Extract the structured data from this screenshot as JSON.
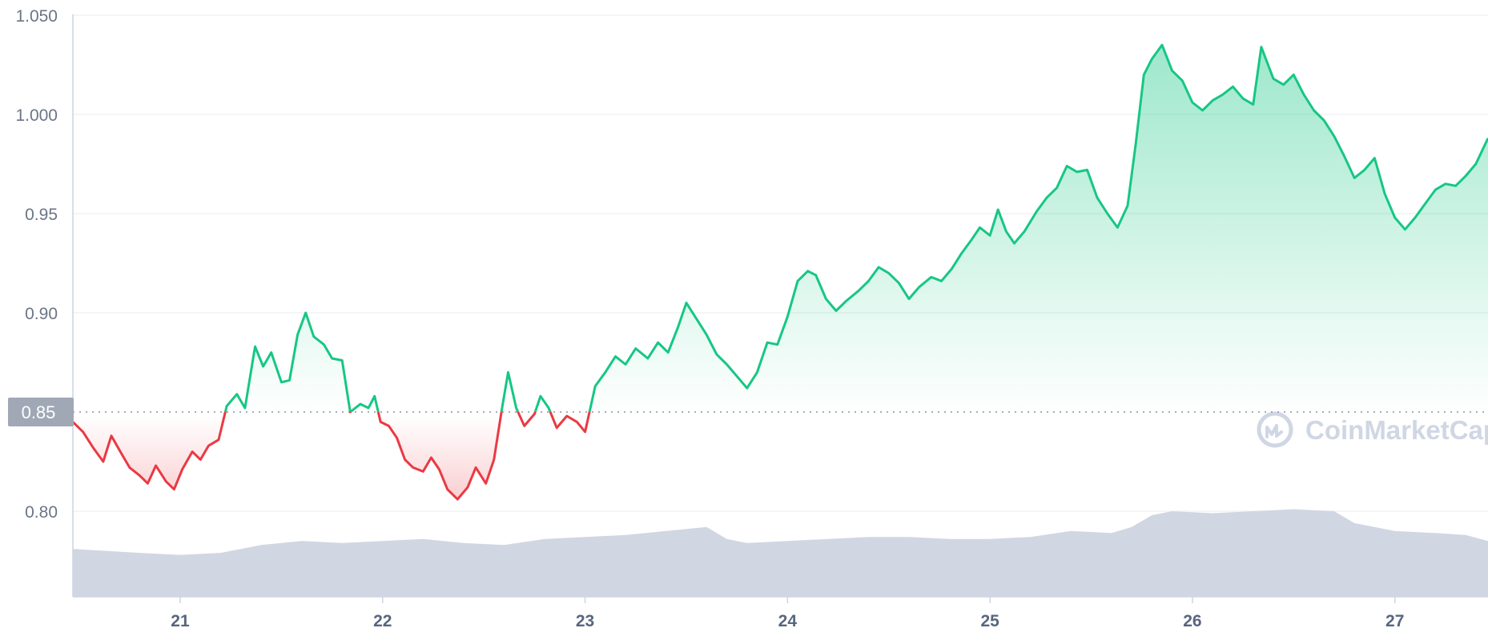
{
  "chart_data": {
    "type": "line",
    "title": "",
    "xlabel": "",
    "ylabel": "",
    "x_ticks": [
      "21",
      "22",
      "23",
      "24",
      "25",
      "26",
      "27"
    ],
    "y_ticks": [
      "1.050",
      "1.000",
      "0.95",
      "0.90",
      "0.80"
    ],
    "ylim": [
      0.755,
      1.052
    ],
    "xlim": [
      20.47,
      27.46
    ],
    "baseline": {
      "value": 0.85,
      "label": "0.85"
    },
    "grid": true,
    "legend": "none",
    "colors": {
      "up": "#16c784",
      "down": "#ea3943",
      "volume": "#d1d6e3",
      "baseline_tag": "#a0a8b6"
    },
    "series": [
      {
        "points": [
          [
            20.47,
            0.845
          ],
          [
            20.52,
            0.84
          ],
          [
            20.57,
            0.832
          ],
          [
            20.62,
            0.825
          ],
          [
            20.66,
            0.838
          ],
          [
            20.71,
            0.829
          ],
          [
            20.75,
            0.822
          ],
          [
            20.8,
            0.818
          ],
          [
            20.84,
            0.814
          ],
          [
            20.88,
            0.823
          ],
          [
            20.93,
            0.815
          ],
          [
            20.97,
            0.811
          ],
          [
            21.01,
            0.821
          ],
          [
            21.06,
            0.83
          ],
          [
            21.1,
            0.826
          ],
          [
            21.14,
            0.833
          ],
          [
            21.19,
            0.836
          ],
          [
            21.23,
            0.853
          ],
          [
            21.28,
            0.859
          ],
          [
            21.32,
            0.852
          ],
          [
            21.37,
            0.883
          ],
          [
            21.41,
            0.873
          ],
          [
            21.45,
            0.88
          ],
          [
            21.5,
            0.865
          ],
          [
            21.54,
            0.866
          ],
          [
            21.58,
            0.889
          ],
          [
            21.62,
            0.9
          ],
          [
            21.66,
            0.888
          ],
          [
            21.71,
            0.884
          ],
          [
            21.75,
            0.877
          ],
          [
            21.8,
            0.876
          ],
          [
            21.84,
            0.85
          ],
          [
            21.89,
            0.854
          ],
          [
            21.93,
            0.852
          ],
          [
            21.96,
            0.858
          ],
          [
            21.99,
            0.845
          ],
          [
            22.03,
            0.843
          ],
          [
            22.07,
            0.837
          ],
          [
            22.11,
            0.826
          ],
          [
            22.15,
            0.822
          ],
          [
            22.2,
            0.82
          ],
          [
            22.24,
            0.827
          ],
          [
            22.28,
            0.821
          ],
          [
            22.32,
            0.811
          ],
          [
            22.37,
            0.806
          ],
          [
            22.42,
            0.812
          ],
          [
            22.46,
            0.822
          ],
          [
            22.51,
            0.814
          ],
          [
            22.55,
            0.826
          ],
          [
            22.59,
            0.852
          ],
          [
            22.62,
            0.87
          ],
          [
            22.66,
            0.852
          ],
          [
            22.7,
            0.843
          ],
          [
            22.75,
            0.849
          ],
          [
            22.78,
            0.858
          ],
          [
            22.82,
            0.852
          ],
          [
            22.86,
            0.842
          ],
          [
            22.91,
            0.848
          ],
          [
            22.96,
            0.845
          ],
          [
            23.0,
            0.84
          ],
          [
            23.05,
            0.863
          ],
          [
            23.1,
            0.87
          ],
          [
            23.15,
            0.878
          ],
          [
            23.2,
            0.874
          ],
          [
            23.25,
            0.882
          ],
          [
            23.31,
            0.877
          ],
          [
            23.36,
            0.885
          ],
          [
            23.41,
            0.88
          ],
          [
            23.46,
            0.893
          ],
          [
            23.5,
            0.905
          ],
          [
            23.55,
            0.897
          ],
          [
            23.6,
            0.889
          ],
          [
            23.65,
            0.879
          ],
          [
            23.7,
            0.874
          ],
          [
            23.75,
            0.868
          ],
          [
            23.8,
            0.862
          ],
          [
            23.85,
            0.87
          ],
          [
            23.9,
            0.885
          ],
          [
            23.95,
            0.884
          ],
          [
            24.0,
            0.898
          ],
          [
            24.05,
            0.916
          ],
          [
            24.1,
            0.921
          ],
          [
            24.14,
            0.919
          ],
          [
            24.19,
            0.907
          ],
          [
            24.24,
            0.901
          ],
          [
            24.29,
            0.906
          ],
          [
            24.35,
            0.911
          ],
          [
            24.4,
            0.916
          ],
          [
            24.45,
            0.923
          ],
          [
            24.5,
            0.92
          ],
          [
            24.55,
            0.915
          ],
          [
            24.6,
            0.907
          ],
          [
            24.65,
            0.913
          ],
          [
            24.71,
            0.918
          ],
          [
            24.76,
            0.916
          ],
          [
            24.81,
            0.922
          ],
          [
            24.86,
            0.93
          ],
          [
            24.91,
            0.937
          ],
          [
            24.95,
            0.943
          ],
          [
            25.0,
            0.939
          ],
          [
            25.04,
            0.952
          ],
          [
            25.08,
            0.941
          ],
          [
            25.12,
            0.935
          ],
          [
            25.17,
            0.941
          ],
          [
            25.23,
            0.951
          ],
          [
            25.28,
            0.958
          ],
          [
            25.33,
            0.963
          ],
          [
            25.38,
            0.974
          ],
          [
            25.43,
            0.971
          ],
          [
            25.48,
            0.972
          ],
          [
            25.53,
            0.958
          ],
          [
            25.58,
            0.95
          ],
          [
            25.63,
            0.943
          ],
          [
            25.68,
            0.954
          ],
          [
            25.72,
            0.985
          ],
          [
            25.76,
            1.02
          ],
          [
            25.8,
            1.028
          ],
          [
            25.85,
            1.035
          ],
          [
            25.9,
            1.022
          ],
          [
            25.95,
            1.017
          ],
          [
            26.0,
            1.006
          ],
          [
            26.05,
            1.002
          ],
          [
            26.1,
            1.007
          ],
          [
            26.15,
            1.01
          ],
          [
            26.2,
            1.014
          ],
          [
            26.25,
            1.008
          ],
          [
            26.3,
            1.005
          ],
          [
            26.34,
            1.034
          ],
          [
            26.4,
            1.018
          ],
          [
            26.45,
            1.015
          ],
          [
            26.5,
            1.02
          ],
          [
            26.55,
            1.01
          ],
          [
            26.6,
            1.002
          ],
          [
            26.65,
            0.997
          ],
          [
            26.7,
            0.989
          ],
          [
            26.75,
            0.979
          ],
          [
            26.8,
            0.968
          ],
          [
            26.85,
            0.972
          ],
          [
            26.9,
            0.978
          ],
          [
            26.95,
            0.96
          ],
          [
            27.0,
            0.948
          ],
          [
            27.05,
            0.942
          ],
          [
            27.1,
            0.948
          ],
          [
            27.15,
            0.955
          ],
          [
            27.2,
            0.962
          ],
          [
            27.25,
            0.965
          ],
          [
            27.3,
            0.964
          ],
          [
            27.35,
            0.969
          ],
          [
            27.4,
            0.975
          ],
          [
            27.46,
            0.988
          ]
        ]
      },
      {
        "name": "volume",
        "points": [
          [
            20.47,
            0.781
          ],
          [
            20.8,
            0.779
          ],
          [
            21.0,
            0.778
          ],
          [
            21.2,
            0.779
          ],
          [
            21.4,
            0.783
          ],
          [
            21.6,
            0.785
          ],
          [
            21.8,
            0.784
          ],
          [
            22.0,
            0.785
          ],
          [
            22.2,
            0.786
          ],
          [
            22.4,
            0.784
          ],
          [
            22.6,
            0.783
          ],
          [
            22.8,
            0.786
          ],
          [
            23.0,
            0.787
          ],
          [
            23.2,
            0.788
          ],
          [
            23.4,
            0.79
          ],
          [
            23.6,
            0.792
          ],
          [
            23.7,
            0.786
          ],
          [
            23.8,
            0.784
          ],
          [
            24.0,
            0.785
          ],
          [
            24.2,
            0.786
          ],
          [
            24.4,
            0.787
          ],
          [
            24.6,
            0.787
          ],
          [
            24.8,
            0.786
          ],
          [
            25.0,
            0.786
          ],
          [
            25.2,
            0.787
          ],
          [
            25.4,
            0.79
          ],
          [
            25.6,
            0.789
          ],
          [
            25.7,
            0.792
          ],
          [
            25.8,
            0.798
          ],
          [
            25.9,
            0.8
          ],
          [
            26.1,
            0.799
          ],
          [
            26.3,
            0.8
          ],
          [
            26.5,
            0.801
          ],
          [
            26.7,
            0.8
          ],
          [
            26.8,
            0.794
          ],
          [
            27.0,
            0.79
          ],
          [
            27.2,
            0.789
          ],
          [
            27.35,
            0.788
          ],
          [
            27.46,
            0.785
          ]
        ]
      }
    ]
  },
  "watermark": {
    "text": "CoinMarketCap",
    "icon": "coinmarketcap-logo-icon"
  }
}
